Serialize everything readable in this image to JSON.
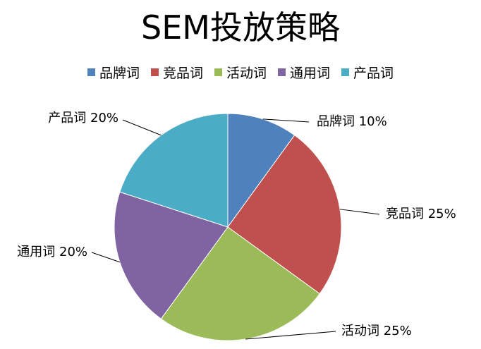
{
  "chart_data": {
    "type": "pie",
    "title": "SEM投放策略",
    "legend_position": "top",
    "slices": [
      {
        "label": "品牌词",
        "value": 10,
        "value_text": "10%",
        "color": "#4F81BD"
      },
      {
        "label": "竞品词",
        "value": 25,
        "value_text": "25%",
        "color": "#C0504D"
      },
      {
        "label": "活动词",
        "value": 25,
        "value_text": "25%",
        "color": "#9BBB59"
      },
      {
        "label": "通用词",
        "value": 20,
        "value_text": "20%",
        "color": "#8064A2"
      },
      {
        "label": "产品词",
        "value": 20,
        "value_text": "20%",
        "color": "#4BACC6"
      }
    ]
  }
}
